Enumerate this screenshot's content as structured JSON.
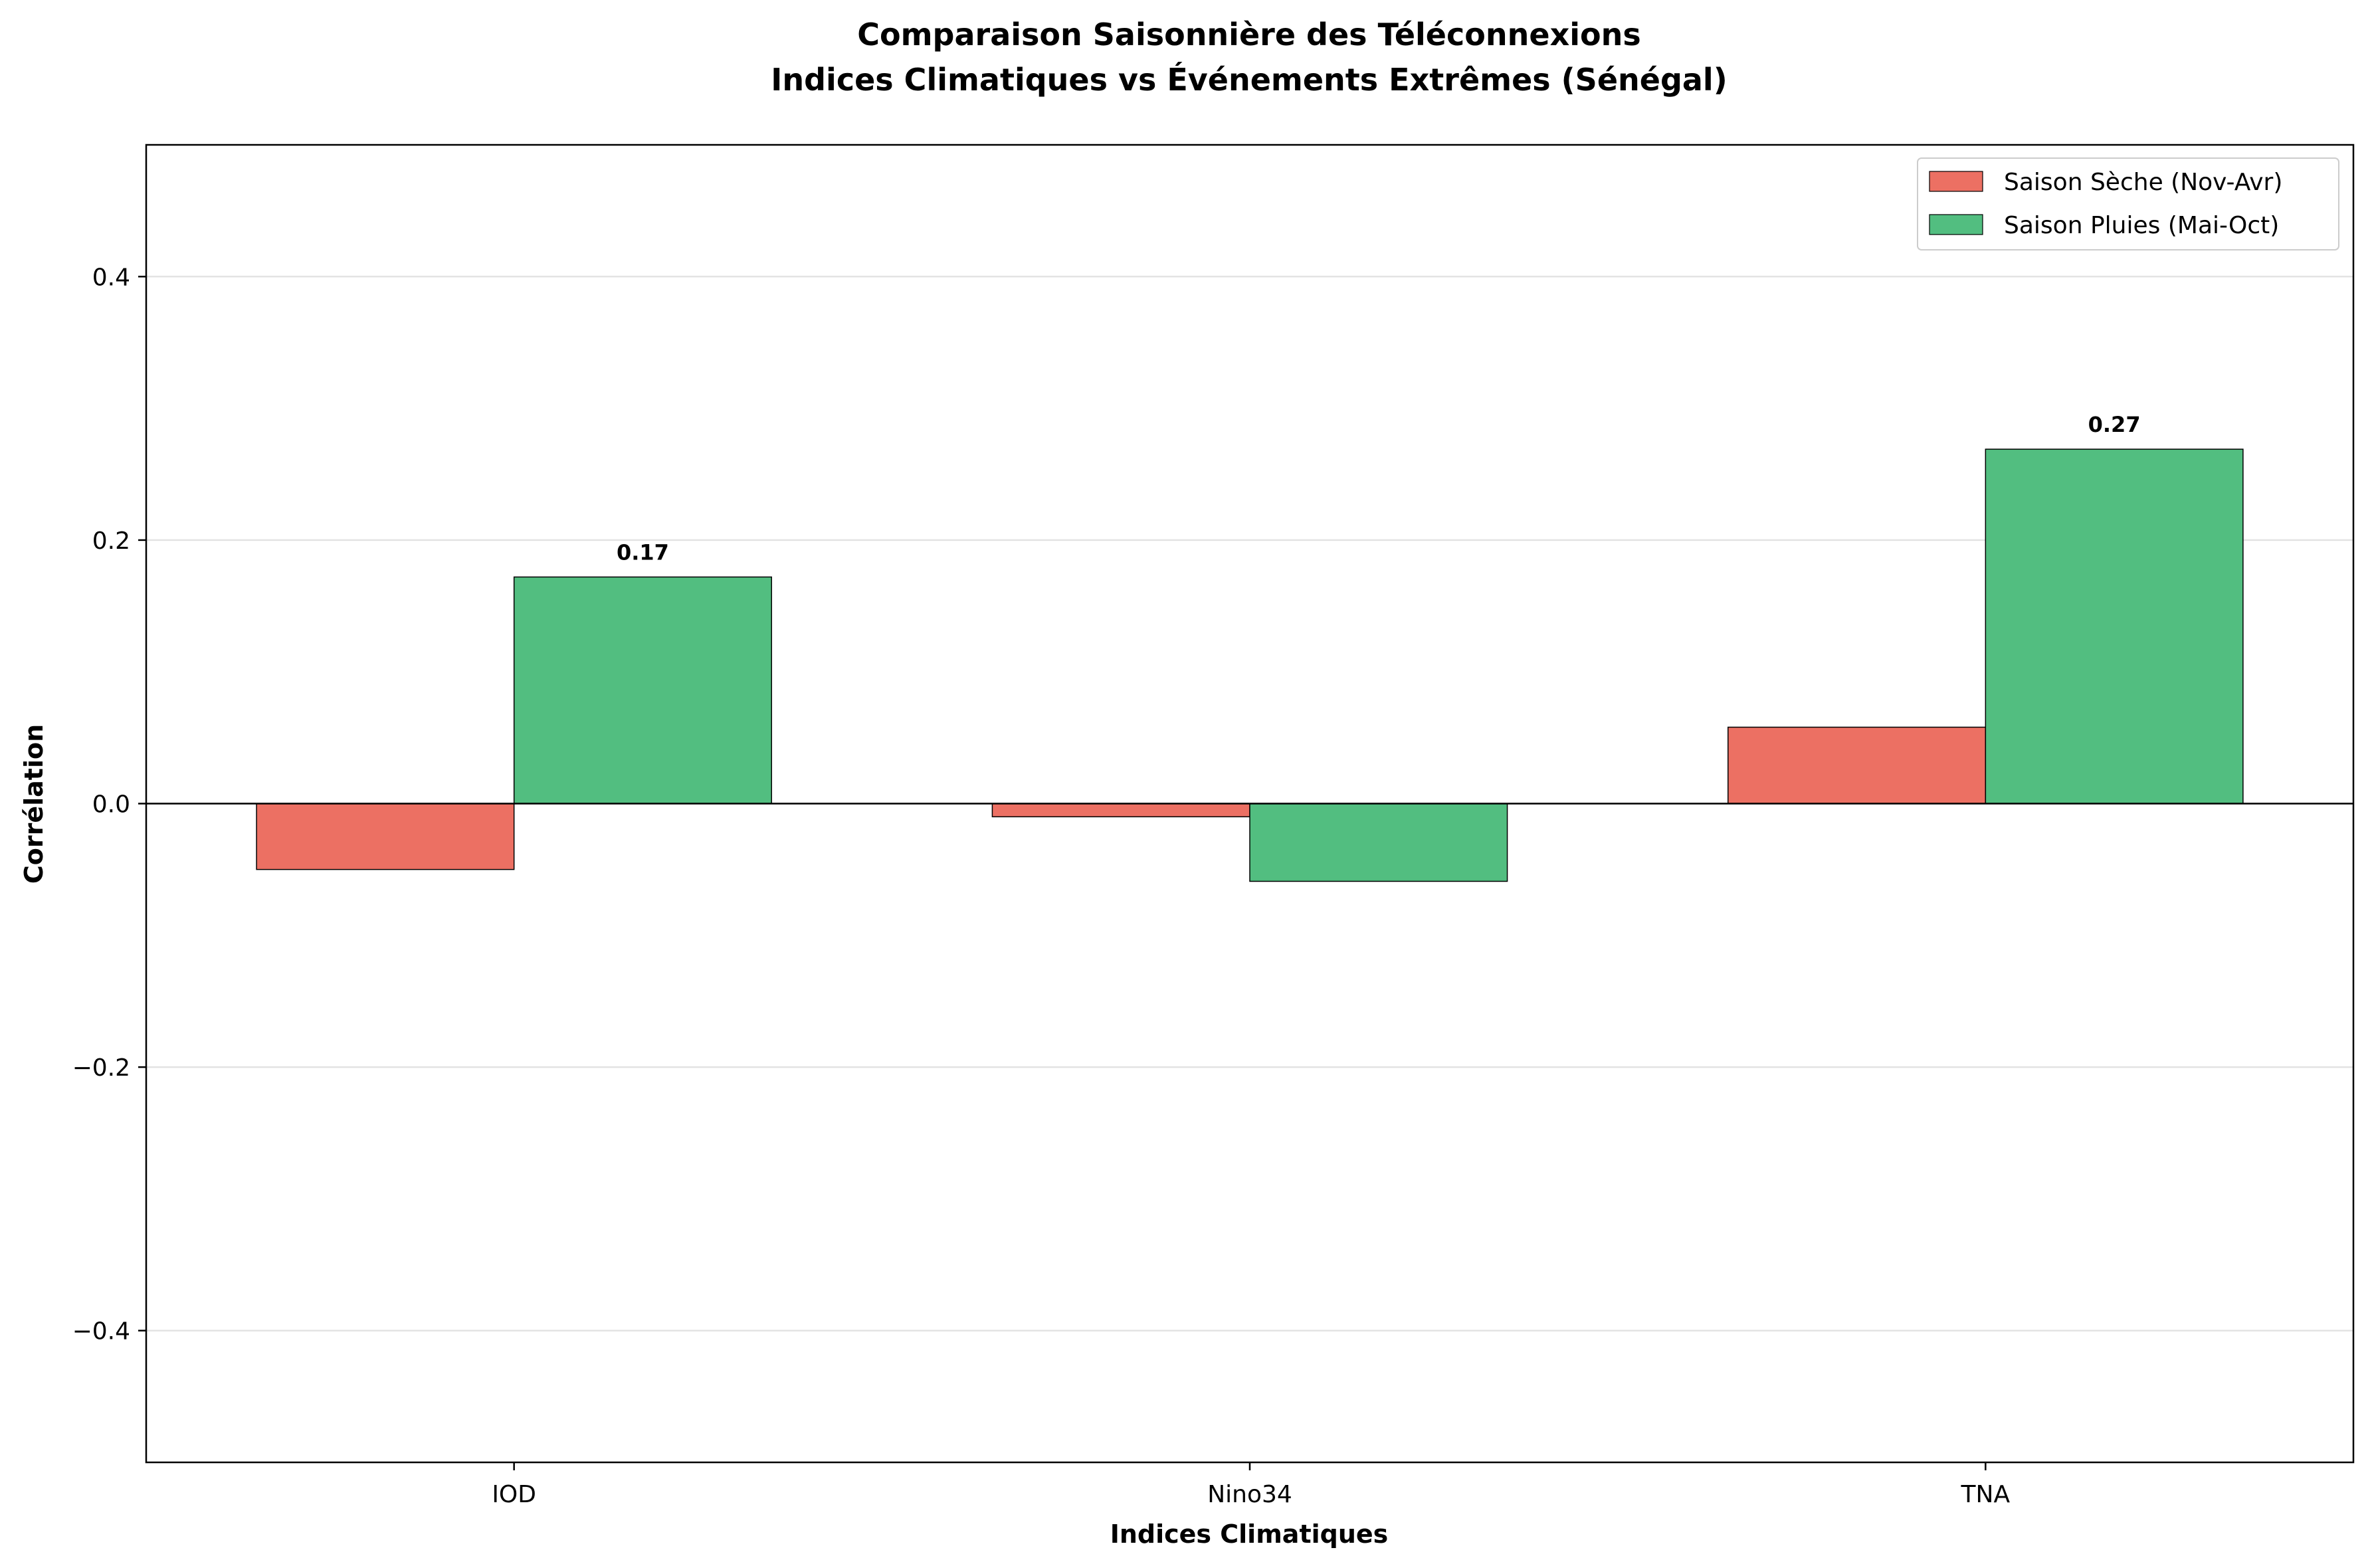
{
  "chart_data": {
    "type": "bar",
    "title": "Comparaison Saisonnière des Téléconnexions",
    "subtitle": "Indices Climatiques vs Événements Extrêmes (Sénégal)",
    "xlabel": "Indices Climatiques",
    "ylabel": "Corrélation",
    "categories": [
      "IOD",
      "Nino34",
      "TNA"
    ],
    "series": [
      {
        "name": "Saison Sèche (Nov-Avr)",
        "color": "#ec7063",
        "values": [
          -0.05,
          -0.01,
          0.058
        ]
      },
      {
        "name": "Saison Pluies (Mai-Oct)",
        "color": "#52be80",
        "values": [
          0.172,
          -0.059,
          0.269
        ]
      }
    ],
    "data_labels": [
      {
        "category": "IOD",
        "series": 1,
        "text": "0.17"
      },
      {
        "category": "TNA",
        "series": 1,
        "text": "0.27"
      }
    ],
    "ylim": [
      -0.5,
      0.5
    ],
    "yticks": [
      -0.4,
      -0.2,
      0.0,
      0.2,
      0.4
    ],
    "ytick_labels": [
      "−0.4",
      "−0.2",
      "0.0",
      "0.2",
      "0.4"
    ],
    "grid": "y",
    "legend": "top-right"
  }
}
